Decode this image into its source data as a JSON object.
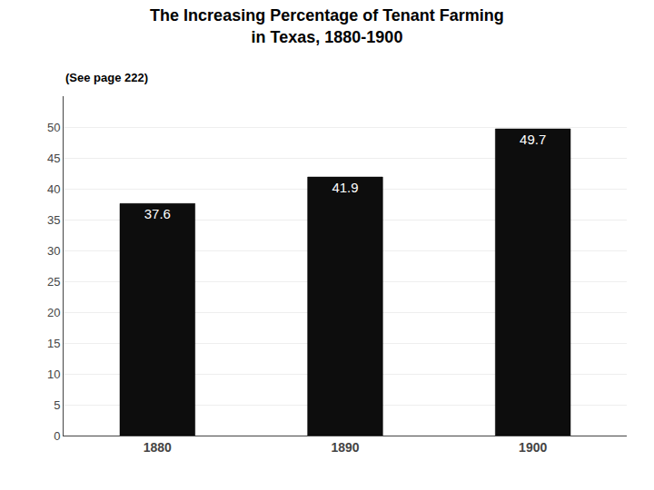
{
  "chart_data": {
    "type": "bar",
    "title": "The Increasing Percentage of Tenant Farming\nin Texas, 1880-1900",
    "subtitle": "(See page 222)",
    "categories": [
      "1880",
      "1890",
      "1900"
    ],
    "values": [
      37.6,
      41.9,
      49.7
    ],
    "color": "#0d0d0d",
    "ylim": [
      0,
      55
    ],
    "yticks": [
      0,
      5,
      10,
      15,
      20,
      25,
      30,
      35,
      40,
      45,
      50
    ],
    "grid": true,
    "data_labels": true
  }
}
